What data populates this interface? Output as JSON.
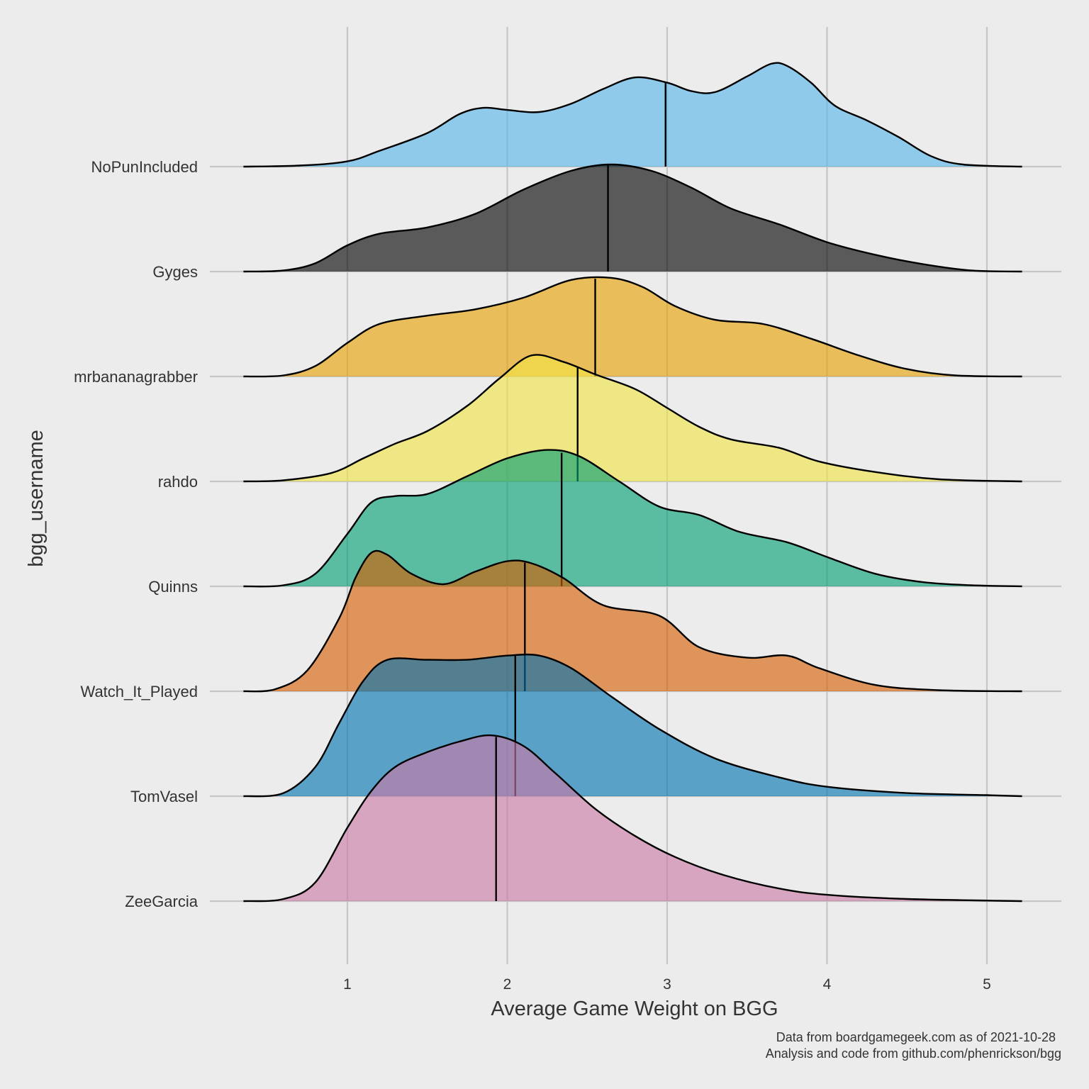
{
  "chart_data": {
    "type": "ridgeline",
    "xlabel": "Average Game Weight on BGG",
    "ylabel": "bgg_username",
    "xlim": [
      0.35,
      5.22
    ],
    "x_ticks": [
      "1",
      "2",
      "3",
      "4",
      "5"
    ],
    "grid": true,
    "legend": "none",
    "caption": [
      "Data from boardgamegeek.com as of 2021-10-28",
      "Analysis and code from github.com/phenrickson/bgg"
    ],
    "series": [
      {
        "name": "NoPunIncluded",
        "color": "#56B4E9",
        "median": 2.99,
        "density": [
          [
            0.35,
            0
          ],
          [
            0.7,
            0.01
          ],
          [
            1.0,
            0.05
          ],
          [
            1.2,
            0.15
          ],
          [
            1.5,
            0.32
          ],
          [
            1.7,
            0.5
          ],
          [
            1.85,
            0.56
          ],
          [
            2.0,
            0.54
          ],
          [
            2.2,
            0.52
          ],
          [
            2.4,
            0.6
          ],
          [
            2.6,
            0.74
          ],
          [
            2.8,
            0.85
          ],
          [
            3.0,
            0.8
          ],
          [
            3.15,
            0.72
          ],
          [
            3.3,
            0.71
          ],
          [
            3.5,
            0.86
          ],
          [
            3.65,
            0.98
          ],
          [
            3.75,
            0.96
          ],
          [
            3.9,
            0.8
          ],
          [
            4.05,
            0.58
          ],
          [
            4.25,
            0.44
          ],
          [
            4.45,
            0.28
          ],
          [
            4.65,
            0.1
          ],
          [
            4.85,
            0.02
          ],
          [
            5.22,
            0
          ]
        ]
      },
      {
        "name": "Gyges",
        "color": "#000000",
        "median": 2.63,
        "density": [
          [
            0.35,
            0
          ],
          [
            0.6,
            0.01
          ],
          [
            0.8,
            0.08
          ],
          [
            1.0,
            0.25
          ],
          [
            1.2,
            0.36
          ],
          [
            1.5,
            0.42
          ],
          [
            1.8,
            0.55
          ],
          [
            2.1,
            0.78
          ],
          [
            2.4,
            0.96
          ],
          [
            2.65,
            1.02
          ],
          [
            2.9,
            0.96
          ],
          [
            3.15,
            0.8
          ],
          [
            3.4,
            0.6
          ],
          [
            3.7,
            0.45
          ],
          [
            4.0,
            0.28
          ],
          [
            4.3,
            0.16
          ],
          [
            4.6,
            0.07
          ],
          [
            4.9,
            0.01
          ],
          [
            5.22,
            0
          ]
        ]
      },
      {
        "name": "mrbananagrabber",
        "color": "#E69F00",
        "median": 2.55,
        "density": [
          [
            0.35,
            0
          ],
          [
            0.6,
            0.01
          ],
          [
            0.8,
            0.1
          ],
          [
            1.0,
            0.32
          ],
          [
            1.2,
            0.5
          ],
          [
            1.5,
            0.58
          ],
          [
            1.8,
            0.64
          ],
          [
            2.1,
            0.75
          ],
          [
            2.4,
            0.92
          ],
          [
            2.65,
            0.94
          ],
          [
            2.85,
            0.85
          ],
          [
            3.05,
            0.67
          ],
          [
            3.3,
            0.54
          ],
          [
            3.6,
            0.5
          ],
          [
            3.9,
            0.36
          ],
          [
            4.2,
            0.2
          ],
          [
            4.5,
            0.07
          ],
          [
            4.8,
            0.01
          ],
          [
            5.22,
            0
          ]
        ]
      },
      {
        "name": "rahdo",
        "color": "#F0E442",
        "median": 2.44,
        "density": [
          [
            0.35,
            0
          ],
          [
            0.6,
            0.01
          ],
          [
            0.9,
            0.08
          ],
          [
            1.1,
            0.22
          ],
          [
            1.3,
            0.36
          ],
          [
            1.5,
            0.48
          ],
          [
            1.75,
            0.72
          ],
          [
            1.95,
            0.98
          ],
          [
            2.15,
            1.2
          ],
          [
            2.35,
            1.14
          ],
          [
            2.55,
            1.02
          ],
          [
            2.8,
            0.88
          ],
          [
            3.0,
            0.7
          ],
          [
            3.2,
            0.52
          ],
          [
            3.4,
            0.4
          ],
          [
            3.7,
            0.32
          ],
          [
            3.95,
            0.19
          ],
          [
            4.3,
            0.09
          ],
          [
            4.7,
            0.02
          ],
          [
            5.22,
            0
          ]
        ]
      },
      {
        "name": "Quinns",
        "color": "#009E73",
        "median": 2.34,
        "density": [
          [
            0.35,
            0
          ],
          [
            0.6,
            0.01
          ],
          [
            0.8,
            0.12
          ],
          [
            1.0,
            0.5
          ],
          [
            1.15,
            0.8
          ],
          [
            1.3,
            0.86
          ],
          [
            1.5,
            0.88
          ],
          [
            1.75,
            1.05
          ],
          [
            2.0,
            1.22
          ],
          [
            2.25,
            1.3
          ],
          [
            2.45,
            1.24
          ],
          [
            2.7,
            1.0
          ],
          [
            2.95,
            0.76
          ],
          [
            3.2,
            0.68
          ],
          [
            3.45,
            0.52
          ],
          [
            3.75,
            0.42
          ],
          [
            4.0,
            0.28
          ],
          [
            4.3,
            0.12
          ],
          [
            4.6,
            0.04
          ],
          [
            4.9,
            0.01
          ],
          [
            5.22,
            0
          ]
        ]
      },
      {
        "name": "Watch_It_Played",
        "color": "#D55E00",
        "median": 2.11,
        "density": [
          [
            0.35,
            0
          ],
          [
            0.55,
            0.02
          ],
          [
            0.75,
            0.2
          ],
          [
            0.95,
            0.7
          ],
          [
            1.05,
            1.08
          ],
          [
            1.15,
            1.32
          ],
          [
            1.25,
            1.3
          ],
          [
            1.4,
            1.12
          ],
          [
            1.6,
            1.02
          ],
          [
            1.8,
            1.14
          ],
          [
            2.0,
            1.24
          ],
          [
            2.15,
            1.22
          ],
          [
            2.35,
            1.08
          ],
          [
            2.6,
            0.82
          ],
          [
            2.95,
            0.72
          ],
          [
            3.2,
            0.42
          ],
          [
            3.5,
            0.32
          ],
          [
            3.75,
            0.34
          ],
          [
            3.95,
            0.22
          ],
          [
            4.3,
            0.06
          ],
          [
            4.7,
            0.01
          ],
          [
            5.22,
            0
          ]
        ]
      },
      {
        "name": "TomVasel",
        "color": "#0072B2",
        "median": 2.05,
        "density": [
          [
            0.35,
            0
          ],
          [
            0.6,
            0.03
          ],
          [
            0.8,
            0.28
          ],
          [
            0.95,
            0.7
          ],
          [
            1.1,
            1.1
          ],
          [
            1.25,
            1.3
          ],
          [
            1.5,
            1.3
          ],
          [
            1.75,
            1.3
          ],
          [
            2.0,
            1.34
          ],
          [
            2.2,
            1.34
          ],
          [
            2.4,
            1.22
          ],
          [
            2.65,
            0.95
          ],
          [
            2.95,
            0.64
          ],
          [
            3.3,
            0.36
          ],
          [
            3.7,
            0.18
          ],
          [
            4.0,
            0.09
          ],
          [
            4.5,
            0.03
          ],
          [
            5.0,
            0.01
          ],
          [
            5.22,
            0
          ]
        ]
      },
      {
        "name": "ZeeGarcia",
        "color": "#CC79A7",
        "median": 1.93,
        "density": [
          [
            0.35,
            0
          ],
          [
            0.6,
            0.02
          ],
          [
            0.8,
            0.18
          ],
          [
            1.0,
            0.7
          ],
          [
            1.15,
            1.05
          ],
          [
            1.3,
            1.28
          ],
          [
            1.5,
            1.42
          ],
          [
            1.7,
            1.52
          ],
          [
            1.9,
            1.58
          ],
          [
            2.1,
            1.48
          ],
          [
            2.3,
            1.22
          ],
          [
            2.55,
            0.88
          ],
          [
            2.8,
            0.62
          ],
          [
            3.05,
            0.42
          ],
          [
            3.35,
            0.25
          ],
          [
            3.7,
            0.12
          ],
          [
            4.0,
            0.06
          ],
          [
            4.5,
            0.02
          ],
          [
            5.22,
            0
          ]
        ]
      }
    ]
  }
}
